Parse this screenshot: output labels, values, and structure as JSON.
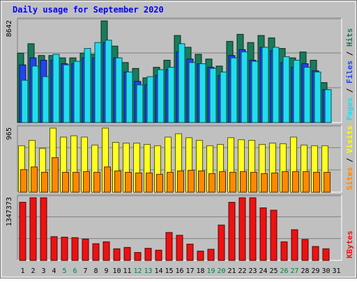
{
  "chart_data": {
    "type": "bar",
    "title": "Daily usage for September 2020",
    "categories": [
      "1",
      "2",
      "3",
      "4",
      "5",
      "6",
      "7",
      "8",
      "9",
      "10",
      "11",
      "12",
      "13",
      "14",
      "15",
      "16",
      "17",
      "18",
      "19",
      "20",
      "21",
      "22",
      "23",
      "24",
      "25",
      "26",
      "27",
      "28",
      "29",
      "30",
      "31"
    ],
    "weekend_days": [
      "5",
      "6",
      "12",
      "13",
      "19",
      "20",
      "26",
      "27"
    ],
    "panels": [
      {
        "id": "traffic",
        "max_label": "8642",
        "ymax": 8642,
        "series": [
          {
            "name": "Hits",
            "color": "#1a7a5a",
            "values": [
              5900,
              6700,
              5700,
              5700,
              5500,
              5500,
              5900,
              5800,
              8642,
              6500,
              5100,
              4600,
              3800,
              4700,
              5300,
              7400,
              6400,
              5800,
              5400,
              4800,
              6900,
              7500,
              6800,
              7400,
              7200,
              6300,
              5500,
              6000,
              5300,
              3400,
              0
            ]
          },
          {
            "name": "Files",
            "color": "#2244ee",
            "values": [
              4900,
              5500,
              5300,
              5300,
              5000,
              5000,
              5500,
              5500,
              6800,
              5500,
              4300,
              3500,
              3200,
              4000,
              4500,
              6000,
              5400,
              5000,
              4700,
              4000,
              5700,
              6200,
              5300,
              6400,
              6100,
              5100,
              4700,
              5000,
              4400,
              2800,
              0
            ]
          },
          {
            "name": "Pages",
            "color": "#22ddee",
            "values": [
              3600,
              4800,
              3900,
              5800,
              4900,
              5200,
              6300,
              6800,
              7000,
              5500,
              4300,
              3200,
              3900,
              4500,
              4700,
              6700,
              5100,
              5000,
              4600,
              4300,
              5500,
              6000,
              5200,
              6400,
              6400,
              5600,
              5300,
              4700,
              4300,
              2800,
              0
            ]
          }
        ]
      },
      {
        "id": "visits",
        "max_label": "965",
        "ymax": 965,
        "series": [
          {
            "name": "Visits",
            "color": "#ffff22",
            "values": [
              700,
              780,
              660,
              965,
              830,
              850,
              830,
              710,
              965,
              750,
              740,
              740,
              720,
              700,
              830,
              880,
              820,
              780,
              700,
              720,
              820,
              790,
              780,
              720,
              740,
              730,
              830,
              710,
              700,
              700,
              0
            ]
          },
          {
            "name": "Sites",
            "color": "#ff8800",
            "values": [
              340,
              380,
              300,
              520,
              300,
              300,
              310,
              300,
              380,
              320,
              300,
              290,
              290,
              270,
              300,
              320,
              330,
              320,
              280,
              310,
              300,
              310,
              300,
              280,
              290,
              310,
              310,
              310,
              300,
              300,
              0
            ]
          }
        ]
      },
      {
        "id": "kbytes",
        "max_label": "1347373",
        "ymax": 1347373,
        "series": [
          {
            "name": "KBytes",
            "color": "#ee1111",
            "values": [
              1250000,
              1347373,
              1347373,
              510000,
              500000,
              490000,
              460000,
              360000,
              400000,
              250000,
              280000,
              170000,
              260000,
              220000,
              600000,
              540000,
              350000,
              200000,
              240000,
              760000,
              1250000,
              1347373,
              1347373,
              1130000,
              1080000,
              400000,
              660000,
              450000,
              300000,
              250000,
              0
            ]
          }
        ]
      }
    ],
    "legend_position": "right",
    "grid": true,
    "background": "#c0c0c0",
    "title_color": "#0000ff",
    "axis_label_color": "#000000",
    "weekend_label_color": "#008040"
  }
}
